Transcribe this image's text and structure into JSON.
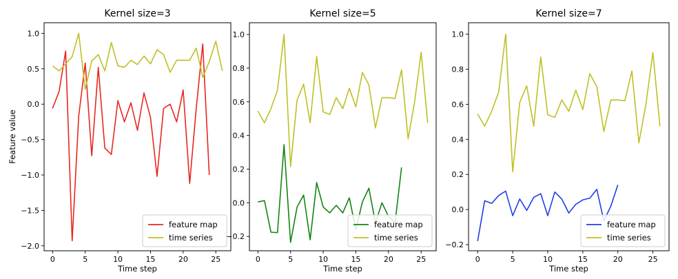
{
  "chart_data": [
    {
      "type": "line",
      "title": "Kernel size=3",
      "xlabel": "Time step",
      "ylabel": "Feature value",
      "xlim": [
        -1.3,
        27.3
      ],
      "ylim": [
        -2.07,
        1.15
      ],
      "xticks": [
        0,
        5,
        10,
        15,
        20,
        25
      ],
      "yticks": [
        -2.0,
        -1.5,
        -1.0,
        -0.5,
        0.0,
        0.5,
        1.0
      ],
      "ytick_labels": [
        "−2.0",
        "−1.5",
        "−1.0",
        "−0.5",
        "0.0",
        "0.5",
        "1.0"
      ],
      "grid": false,
      "legend": "lower-right",
      "series": [
        {
          "name": "feature map",
          "color": "#e8261f",
          "x": [
            0,
            1,
            2,
            3,
            4,
            5,
            6,
            7,
            8,
            9,
            10,
            11,
            12,
            13,
            14,
            15,
            16,
            17,
            18,
            19,
            20,
            21,
            22,
            23,
            24
          ],
          "values": [
            -0.06,
            0.18,
            0.75,
            -1.93,
            -0.17,
            0.58,
            -0.73,
            0.52,
            -0.62,
            -0.71,
            0.05,
            -0.25,
            0.02,
            -0.37,
            0.16,
            -0.19,
            -1.02,
            -0.06,
            0.0,
            -0.25,
            0.2,
            -1.12,
            -0.06,
            0.85,
            -1.0
          ]
        },
        {
          "name": "time series",
          "color": "#bfbf25",
          "x": [
            0,
            1,
            2,
            3,
            4,
            5,
            6,
            7,
            8,
            9,
            10,
            11,
            12,
            13,
            14,
            15,
            16,
            17,
            18,
            19,
            20,
            21,
            22,
            23,
            24,
            25,
            26
          ],
          "values": [
            0.54,
            0.47,
            0.57,
            0.67,
            1.0,
            0.21,
            0.61,
            0.7,
            0.47,
            0.87,
            0.54,
            0.52,
            0.62,
            0.56,
            0.68,
            0.57,
            0.77,
            0.7,
            0.45,
            0.62,
            0.62,
            0.62,
            0.79,
            0.38,
            0.6,
            0.89,
            0.47
          ]
        }
      ]
    },
    {
      "type": "line",
      "title": "Kernel size=5",
      "xlabel": "Time step",
      "ylabel": "",
      "xlim": [
        -1.3,
        27.3
      ],
      "ylim": [
        -0.285,
        1.07
      ],
      "xticks": [
        0,
        5,
        10,
        15,
        20,
        25
      ],
      "yticks": [
        -0.2,
        0.0,
        0.2,
        0.4,
        0.6,
        0.8,
        1.0
      ],
      "ytick_labels": [
        "−0.2",
        "0.0",
        "0.2",
        "0.4",
        "0.6",
        "0.8",
        "1.0"
      ],
      "grid": false,
      "legend": "lower-right",
      "series": [
        {
          "name": "feature map",
          "color": "#128312",
          "x": [
            0,
            1,
            2,
            3,
            4,
            5,
            6,
            7,
            8,
            9,
            10,
            11,
            12,
            13,
            14,
            15,
            16,
            17,
            18,
            19,
            20,
            21,
            22
          ],
          "values": [
            0.005,
            0.013,
            -0.175,
            -0.177,
            0.345,
            -0.235,
            -0.025,
            0.046,
            -0.22,
            0.12,
            -0.025,
            -0.06,
            -0.015,
            -0.06,
            0.03,
            -0.16,
            0.005,
            0.087,
            -0.12,
            0.0,
            -0.08,
            -0.12,
            0.21
          ]
        },
        {
          "name": "time series",
          "color": "#bfbf25",
          "x": [
            0,
            1,
            2,
            3,
            4,
            5,
            6,
            7,
            8,
            9,
            10,
            11,
            12,
            13,
            14,
            15,
            16,
            17,
            18,
            19,
            20,
            21,
            22,
            23,
            24,
            25,
            26
          ],
          "values": [
            0.545,
            0.475,
            0.56,
            0.67,
            1.0,
            0.215,
            0.61,
            0.705,
            0.475,
            0.87,
            0.54,
            0.525,
            0.625,
            0.56,
            0.68,
            0.57,
            0.775,
            0.7,
            0.445,
            0.625,
            0.625,
            0.62,
            0.79,
            0.38,
            0.6,
            0.895,
            0.475
          ]
        }
      ]
    },
    {
      "type": "line",
      "title": "Kernel size=7",
      "xlabel": "Time step",
      "ylabel": "",
      "xlim": [
        -1.3,
        27.3
      ],
      "ylim": [
        -0.235,
        1.065
      ],
      "xticks": [
        0,
        5,
        10,
        15,
        20,
        25
      ],
      "yticks": [
        -0.2,
        0.0,
        0.2,
        0.4,
        0.6,
        0.8,
        1.0
      ],
      "ytick_labels": [
        "−0.2",
        "0.0",
        "0.2",
        "0.4",
        "0.6",
        "0.8",
        "1.0"
      ],
      "grid": false,
      "legend": "lower-right",
      "series": [
        {
          "name": "feature map",
          "color": "#1f3ee6",
          "x": [
            0,
            1,
            2,
            3,
            4,
            5,
            6,
            7,
            8,
            9,
            10,
            11,
            12,
            13,
            14,
            15,
            16,
            17,
            18,
            19,
            20
          ],
          "values": [
            -0.18,
            0.05,
            0.035,
            0.08,
            0.105,
            -0.035,
            0.06,
            -0.005,
            0.07,
            0.09,
            -0.035,
            0.1,
            0.06,
            -0.02,
            0.03,
            0.055,
            0.065,
            0.115,
            -0.065,
            0.02,
            0.14
          ]
        },
        {
          "name": "time series",
          "color": "#bfbf25",
          "x": [
            0,
            1,
            2,
            3,
            4,
            5,
            6,
            7,
            8,
            9,
            10,
            11,
            12,
            13,
            14,
            15,
            16,
            17,
            18,
            19,
            20,
            21,
            22,
            23,
            24,
            25,
            26
          ],
          "values": [
            0.545,
            0.475,
            0.56,
            0.67,
            1.0,
            0.215,
            0.61,
            0.705,
            0.475,
            0.87,
            0.54,
            0.525,
            0.625,
            0.56,
            0.68,
            0.57,
            0.775,
            0.7,
            0.445,
            0.625,
            0.625,
            0.62,
            0.79,
            0.38,
            0.6,
            0.895,
            0.475
          ]
        }
      ]
    }
  ]
}
